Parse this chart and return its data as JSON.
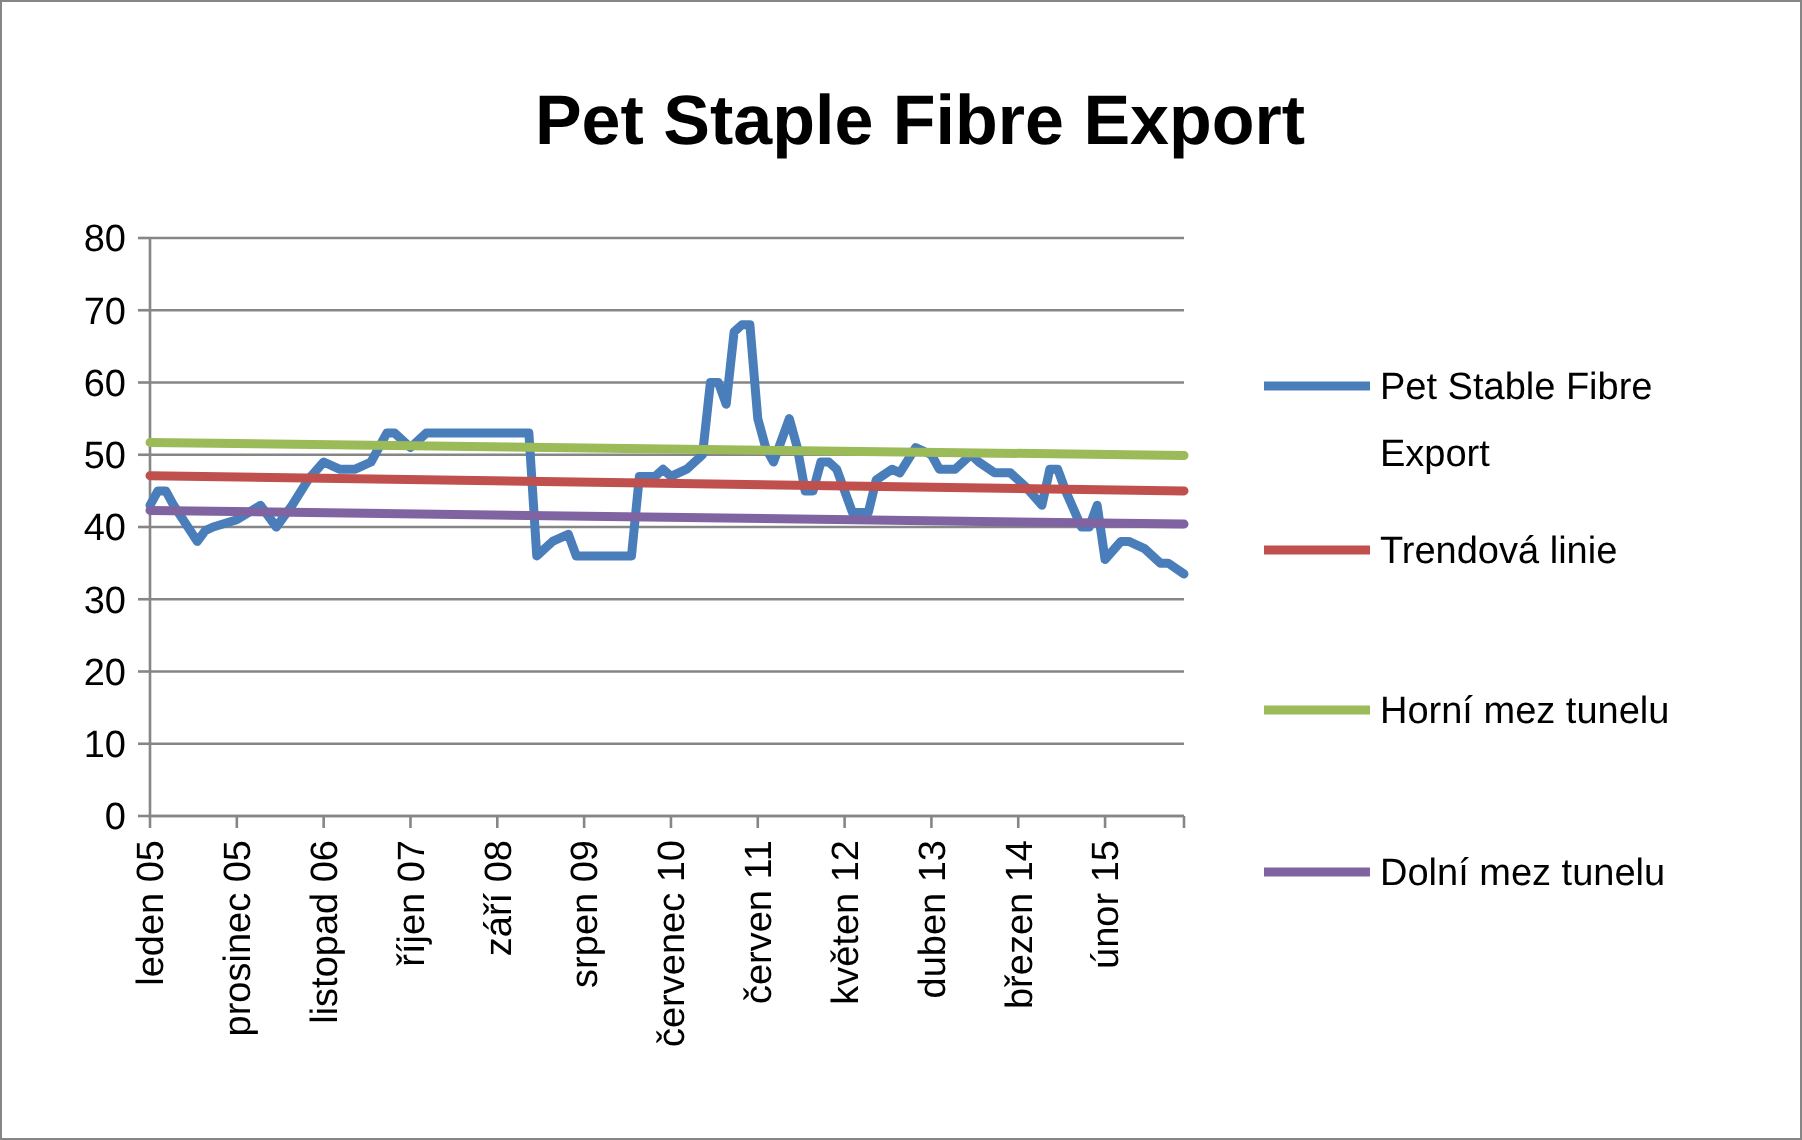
{
  "chart_data": {
    "type": "line",
    "title": "Pet Staple Fibre Export",
    "xlim": [
      "2005-01",
      "2015-12"
    ],
    "xticks": [
      {
        "value": "2005-01",
        "label": "leden 05"
      },
      {
        "value": "2005-12",
        "label": "prosinec 05"
      },
      {
        "value": "2006-11",
        "label": "listopad 06"
      },
      {
        "value": "2007-10",
        "label": "říjen 07"
      },
      {
        "value": "2008-09",
        "label": "září 08"
      },
      {
        "value": "2009-08",
        "label": "srpen 09"
      },
      {
        "value": "2010-07",
        "label": "červenec 10"
      },
      {
        "value": "2011-06",
        "label": "červen 11"
      },
      {
        "value": "2012-05",
        "label": "květen 12"
      },
      {
        "value": "2013-04",
        "label": "duben 13"
      },
      {
        "value": "2014-03",
        "label": "březen 14"
      },
      {
        "value": "2015-02",
        "label": "únor 15"
      }
    ],
    "ylim": [
      0,
      80
    ],
    "yticks": [
      0,
      10,
      20,
      30,
      40,
      50,
      60,
      70,
      80
    ],
    "grid": "y",
    "legend": "right",
    "marker": "none",
    "line_style": "solid",
    "series": [
      {
        "name": "Pet Stable Fibre Export",
        "color": "#4a7ebb",
        "x": [
          "2005-01",
          "2005-02",
          "2005-03",
          "2005-04",
          "2005-07",
          "2005-08",
          "2005-09",
          "2005-12",
          "2006-03",
          "2006-05",
          "2006-07",
          "2006-09",
          "2006-11",
          "2007-01",
          "2007-03",
          "2007-05",
          "2007-07",
          "2007-08",
          "2007-10",
          "2007-12",
          "2009-01",
          "2009-02",
          "2009-04",
          "2009-06",
          "2009-07",
          "2010-02",
          "2010-03",
          "2010-05",
          "2010-06",
          "2010-07",
          "2010-09",
          "2010-11",
          "2010-12",
          "2011-01",
          "2011-02",
          "2011-03",
          "2011-04",
          "2011-05",
          "2011-06",
          "2011-07",
          "2011-08",
          "2011-10",
          "2011-11",
          "2011-12",
          "2012-01",
          "2012-02",
          "2012-03",
          "2012-04",
          "2012-06",
          "2012-08",
          "2012-09",
          "2012-11",
          "2012-12",
          "2013-02",
          "2013-04",
          "2013-05",
          "2013-07",
          "2013-09",
          "2013-10",
          "2013-12",
          "2014-02",
          "2014-03",
          "2014-04",
          "2014-06",
          "2014-07",
          "2014-08",
          "2014-09",
          "2014-11",
          "2014-12",
          "2015-01",
          "2015-02",
          "2015-04",
          "2015-05",
          "2015-07",
          "2015-09",
          "2015-10",
          "2015-12"
        ],
        "values": [
          43,
          45,
          45,
          43,
          38,
          39.5,
          40,
          41,
          43,
          40,
          43,
          46.5,
          49,
          48,
          48,
          49,
          53,
          53,
          51,
          53,
          53,
          36,
          38,
          39,
          36,
          36,
          47,
          47,
          48,
          47,
          48,
          50,
          60,
          60,
          57,
          67,
          68,
          68,
          55,
          51,
          49,
          55,
          51,
          45,
          45,
          49,
          49,
          48,
          42,
          42,
          46.5,
          48,
          47.5,
          51,
          50,
          48,
          48,
          50,
          49,
          47.5,
          47.5,
          46.5,
          45.5,
          43,
          48,
          48,
          45,
          40,
          40,
          43,
          35.5,
          38,
          38,
          37,
          35,
          35,
          33.5
        ]
      },
      {
        "name": "Trendová linie",
        "color": "#c0504d",
        "x": [
          "2005-01",
          "2015-12"
        ],
        "values": [
          47.1,
          45
        ]
      },
      {
        "name": "Horní mez tunelu",
        "color": "#9bbb59",
        "x": [
          "2005-01",
          "2015-12"
        ],
        "values": [
          51.7,
          49.9
        ]
      },
      {
        "name": "Dolní mez tunelu",
        "color": "#8064a2",
        "x": [
          "2005-01",
          "2015-12"
        ],
        "values": [
          42.3,
          40.4
        ]
      }
    ]
  }
}
